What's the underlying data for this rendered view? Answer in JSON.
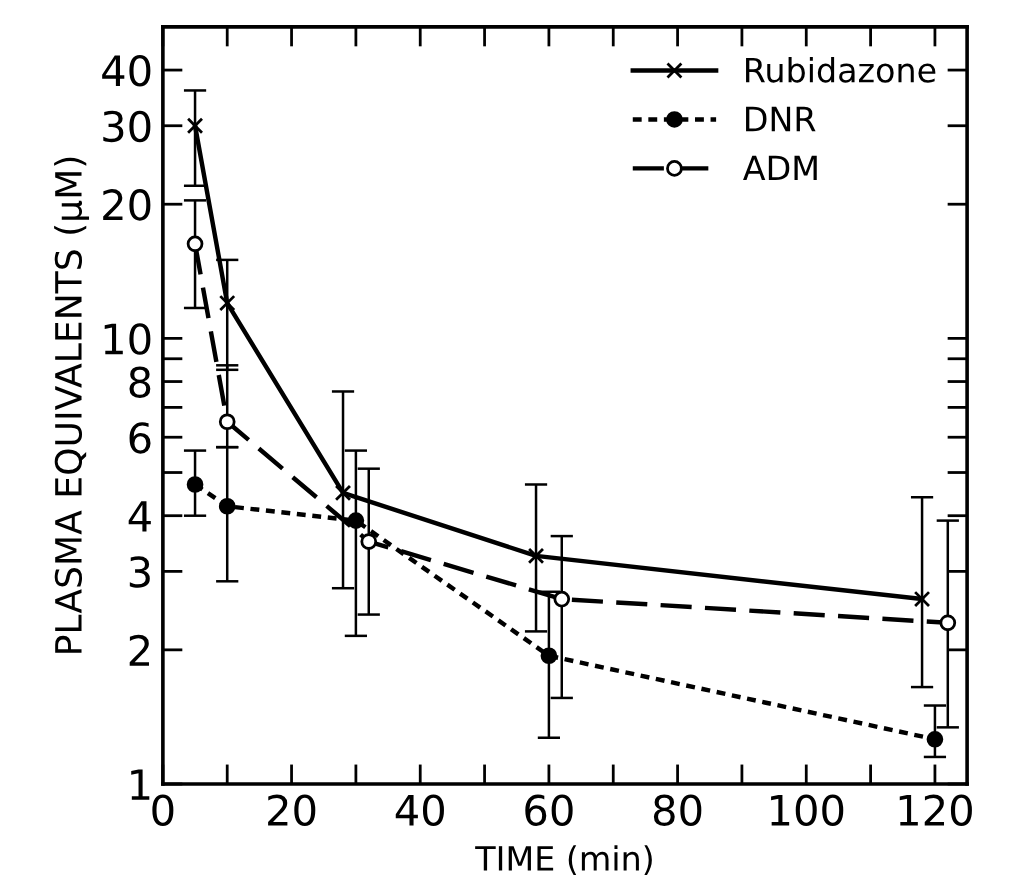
{
  "chart_data": {
    "type": "line",
    "xlabel": "TIME (min)",
    "ylabel": "PLASMA EQUIVALENTS (μM)",
    "log": "y",
    "xlim": [
      0,
      125
    ],
    "ylim": [
      1,
      50
    ],
    "xticks": [
      0,
      {
        "value": 10,
        "label": null
      },
      20,
      {
        "value": 30,
        "label": null
      },
      40,
      {
        "value": 50,
        "label": null
      },
      60,
      {
        "value": 70,
        "label": null
      },
      80,
      {
        "value": 90,
        "label": null
      },
      100,
      {
        "value": 110,
        "label": null
      },
      120
    ],
    "yticks": [
      1,
      2,
      3,
      4,
      {
        "value": 5,
        "label": null
      },
      6,
      {
        "value": 7,
        "label": null
      },
      8,
      {
        "value": 9,
        "label": null
      },
      10,
      20,
      30,
      40
    ],
    "legend": "top right",
    "grid": false,
    "series": [
      {
        "name": "Rubidazone",
        "color": "#000000",
        "marker": "cross",
        "line_style": "solid",
        "x": [
          5,
          10,
          28,
          58,
          118
        ],
        "values": [
          30,
          12,
          4.5,
          3.25,
          2.6
        ],
        "errors": [
          [
            22,
            36
          ],
          [
            8.5,
            15
          ],
          [
            2.75,
            7.6
          ],
          [
            2.2,
            4.7
          ],
          [
            1.65,
            4.4
          ]
        ]
      },
      {
        "name": "DNR",
        "color": "#000000",
        "marker": "circle",
        "line_style": "dotted",
        "x": [
          5,
          10,
          30,
          60,
          120
        ],
        "values": [
          4.7,
          4.2,
          3.9,
          1.94,
          1.26
        ],
        "errors": [
          [
            4.0,
            5.6
          ],
          [
            2.85,
            5.7
          ],
          [
            2.15,
            5.6
          ],
          [
            1.27,
            2.7
          ],
          [
            1.15,
            1.5
          ]
        ]
      },
      {
        "name": "ADM",
        "color": "#000000",
        "marker": "open circle",
        "line_style": "dashed",
        "x": [
          5,
          10,
          32,
          62,
          122
        ],
        "values": [
          16.3,
          6.5,
          3.5,
          2.6,
          2.3
        ],
        "errors": [
          [
            11.7,
            20.4
          ],
          [
            5.7,
            8.7
          ],
          [
            2.4,
            5.1
          ],
          [
            1.56,
            3.6
          ],
          [
            1.34,
            3.9
          ]
        ]
      }
    ]
  }
}
